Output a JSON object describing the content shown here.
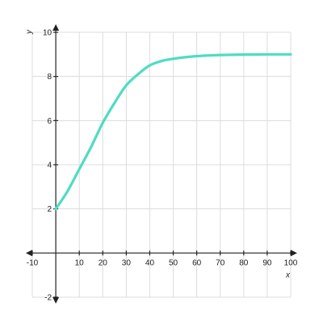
{
  "chart_data": {
    "type": "line",
    "xlabel": "x",
    "ylabel": "y",
    "xlim": [
      -10,
      100
    ],
    "ylim": [
      -2,
      10
    ],
    "x_ticks": [
      -10,
      10,
      20,
      30,
      40,
      50,
      60,
      70,
      80,
      90,
      100
    ],
    "y_ticks": [
      -2,
      2,
      4,
      6,
      8,
      10
    ],
    "grid": true,
    "series": [
      {
        "color": "#4fdcc2",
        "points": [
          [
            0,
            2.0
          ],
          [
            5,
            2.8
          ],
          [
            10,
            3.8
          ],
          [
            15,
            4.8
          ],
          [
            20,
            5.9
          ],
          [
            25,
            6.8
          ],
          [
            30,
            7.6
          ],
          [
            35,
            8.1
          ],
          [
            40,
            8.5
          ],
          [
            45,
            8.7
          ],
          [
            50,
            8.8
          ],
          [
            55,
            8.87
          ],
          [
            60,
            8.92
          ],
          [
            65,
            8.95
          ],
          [
            70,
            8.97
          ],
          [
            75,
            8.98
          ],
          [
            80,
            8.99
          ],
          [
            85,
            8.995
          ],
          [
            90,
            9.0
          ],
          [
            95,
            9.0
          ],
          [
            100,
            9.0
          ]
        ]
      }
    ]
  }
}
